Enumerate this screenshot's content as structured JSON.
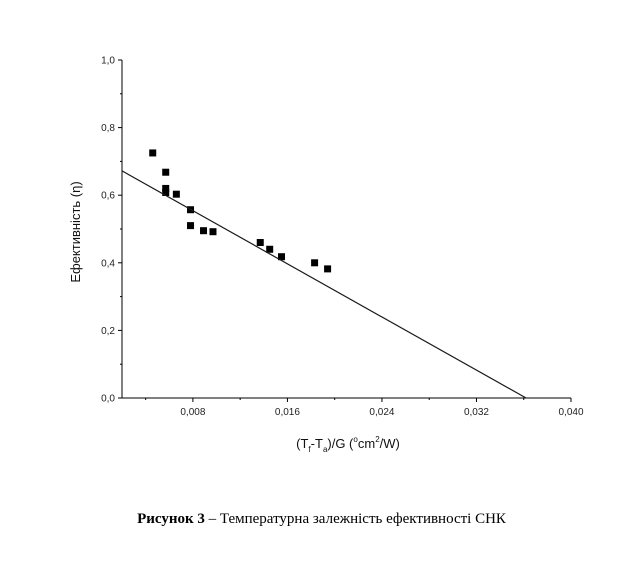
{
  "chart_data": {
    "type": "scatter",
    "xlabel_parts": [
      "(T",
      "f",
      "-T",
      "a",
      ")/G (",
      "o",
      "cm",
      "2",
      "/W)"
    ],
    "ylabel": "Ефективність (η)",
    "xlim": [
      0.002,
      0.04
    ],
    "ylim": [
      0.0,
      1.0
    ],
    "xticks": [
      0.008,
      0.016,
      0.024,
      0.032,
      0.04
    ],
    "xtick_labels": [
      "0,008",
      "0,016",
      "0,024",
      "0,032",
      "0,040"
    ],
    "yticks": [
      0.0,
      0.2,
      0.4,
      0.6,
      0.8,
      1.0
    ],
    "ytick_labels": [
      "0,0",
      "0,2",
      "0,4",
      "0,6",
      "0,8",
      "1,0"
    ],
    "grid": false,
    "series": [
      {
        "marker": "square",
        "points": [
          {
            "x": 0.0046,
            "y": 0.725
          },
          {
            "x": 0.0057,
            "y": 0.668
          },
          {
            "x": 0.0057,
            "y": 0.62
          },
          {
            "x": 0.0057,
            "y": 0.608
          },
          {
            "x": 0.0066,
            "y": 0.603
          },
          {
            "x": 0.0078,
            "y": 0.557
          },
          {
            "x": 0.0078,
            "y": 0.51
          },
          {
            "x": 0.0089,
            "y": 0.495
          },
          {
            "x": 0.0097,
            "y": 0.492
          },
          {
            "x": 0.0137,
            "y": 0.46
          },
          {
            "x": 0.0145,
            "y": 0.44
          },
          {
            "x": 0.0155,
            "y": 0.418
          },
          {
            "x": 0.0183,
            "y": 0.4
          },
          {
            "x": 0.0194,
            "y": 0.382
          }
        ]
      },
      {
        "marker": "line",
        "points": [
          {
            "x": 0.002,
            "y": 0.672
          },
          {
            "x": 0.0362,
            "y": 0.0
          }
        ]
      }
    ]
  },
  "caption": {
    "label": "Рисунок 3",
    "text": " – Температурна залежність ефективності СНК"
  },
  "colors": {
    "ink": "#000000",
    "line": "#1a1a1a"
  }
}
